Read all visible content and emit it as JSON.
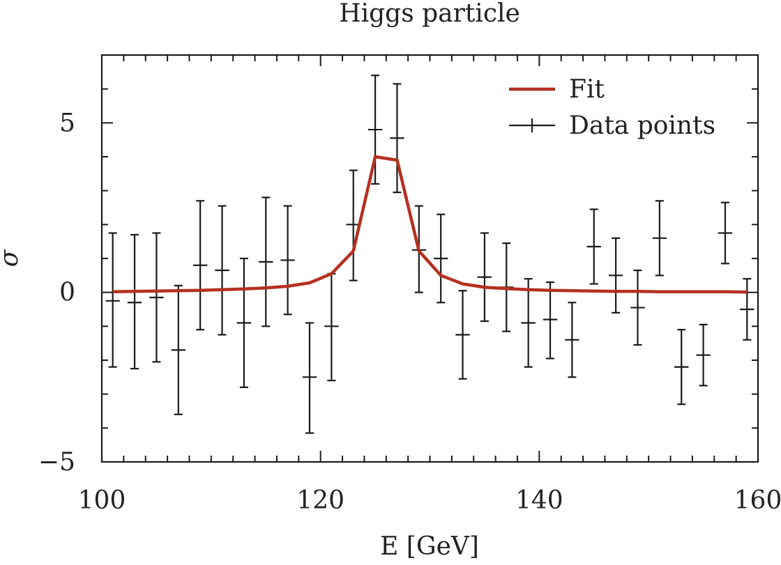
{
  "chart_data": {
    "type": "scatter",
    "title": "Higgs particle",
    "xlabel": "E [GeV]",
    "ylabel": "σ",
    "xlim": [
      100,
      160
    ],
    "ylim": [
      -5,
      7
    ],
    "x_ticks": [
      100,
      120,
      140,
      160
    ],
    "y_ticks": [
      -5,
      0,
      5
    ],
    "x_tick_labels": [
      "100",
      "120",
      "140",
      "160"
    ],
    "y_tick_labels": [
      "−5",
      "0",
      "5"
    ],
    "grid": false,
    "legend_position": "top-right",
    "series": [
      {
        "name": "Fit",
        "kind": "line",
        "color": "#b5301f",
        "x": [
          101,
          103,
          105,
          107,
          109,
          111,
          113,
          115,
          117,
          119,
          121,
          123,
          125,
          127,
          129,
          131,
          133,
          135,
          137,
          139,
          141,
          143,
          145,
          147,
          149,
          151,
          153,
          155,
          157,
          159
        ],
        "y": [
          0.02,
          0.03,
          0.04,
          0.05,
          0.06,
          0.08,
          0.1,
          0.13,
          0.18,
          0.28,
          0.55,
          1.22,
          4.0,
          3.9,
          1.22,
          0.5,
          0.25,
          0.15,
          0.11,
          0.08,
          0.06,
          0.05,
          0.04,
          0.03,
          0.03,
          0.02,
          0.02,
          0.02,
          0.02,
          0.01
        ]
      },
      {
        "name": "Data points",
        "kind": "errorbar",
        "color": "#1a1a1a",
        "x": [
          101,
          103,
          105,
          107,
          109,
          111,
          113,
          115,
          117,
          119,
          121,
          123,
          125,
          127,
          129,
          131,
          133,
          135,
          137,
          139,
          141,
          143,
          145,
          147,
          149,
          151,
          153,
          155,
          157,
          159
        ],
        "y": [
          -0.25,
          -0.3,
          -0.15,
          -1.7,
          0.8,
          0.65,
          -0.9,
          0.9,
          0.95,
          -2.5,
          -1.0,
          2.0,
          4.8,
          4.55,
          1.25,
          1.0,
          -1.25,
          0.45,
          0.15,
          -0.9,
          -0.8,
          -1.4,
          1.35,
          0.5,
          -0.45,
          1.6,
          -2.2,
          -1.85,
          1.75,
          -0.5
        ],
        "y_low": [
          -2.2,
          -2.25,
          -2.05,
          -3.6,
          -1.1,
          -1.25,
          -2.8,
          -1.0,
          -0.65,
          -4.15,
          -2.6,
          0.35,
          3.2,
          2.95,
          0.0,
          -0.3,
          -2.55,
          -0.85,
          -1.15,
          -2.2,
          -1.95,
          -2.5,
          0.25,
          -0.6,
          -1.55,
          0.5,
          -3.3,
          -2.75,
          0.85,
          -1.4
        ],
        "y_high": [
          1.75,
          1.7,
          1.75,
          0.2,
          2.7,
          2.55,
          1.0,
          2.8,
          2.55,
          -0.9,
          0.55,
          3.6,
          6.4,
          6.15,
          2.55,
          2.3,
          0.05,
          1.75,
          1.45,
          0.4,
          0.3,
          -0.3,
          2.45,
          1.6,
          0.65,
          2.7,
          -1.1,
          -0.95,
          2.65,
          0.4
        ],
        "x_halfwidth": 0.65
      }
    ]
  }
}
